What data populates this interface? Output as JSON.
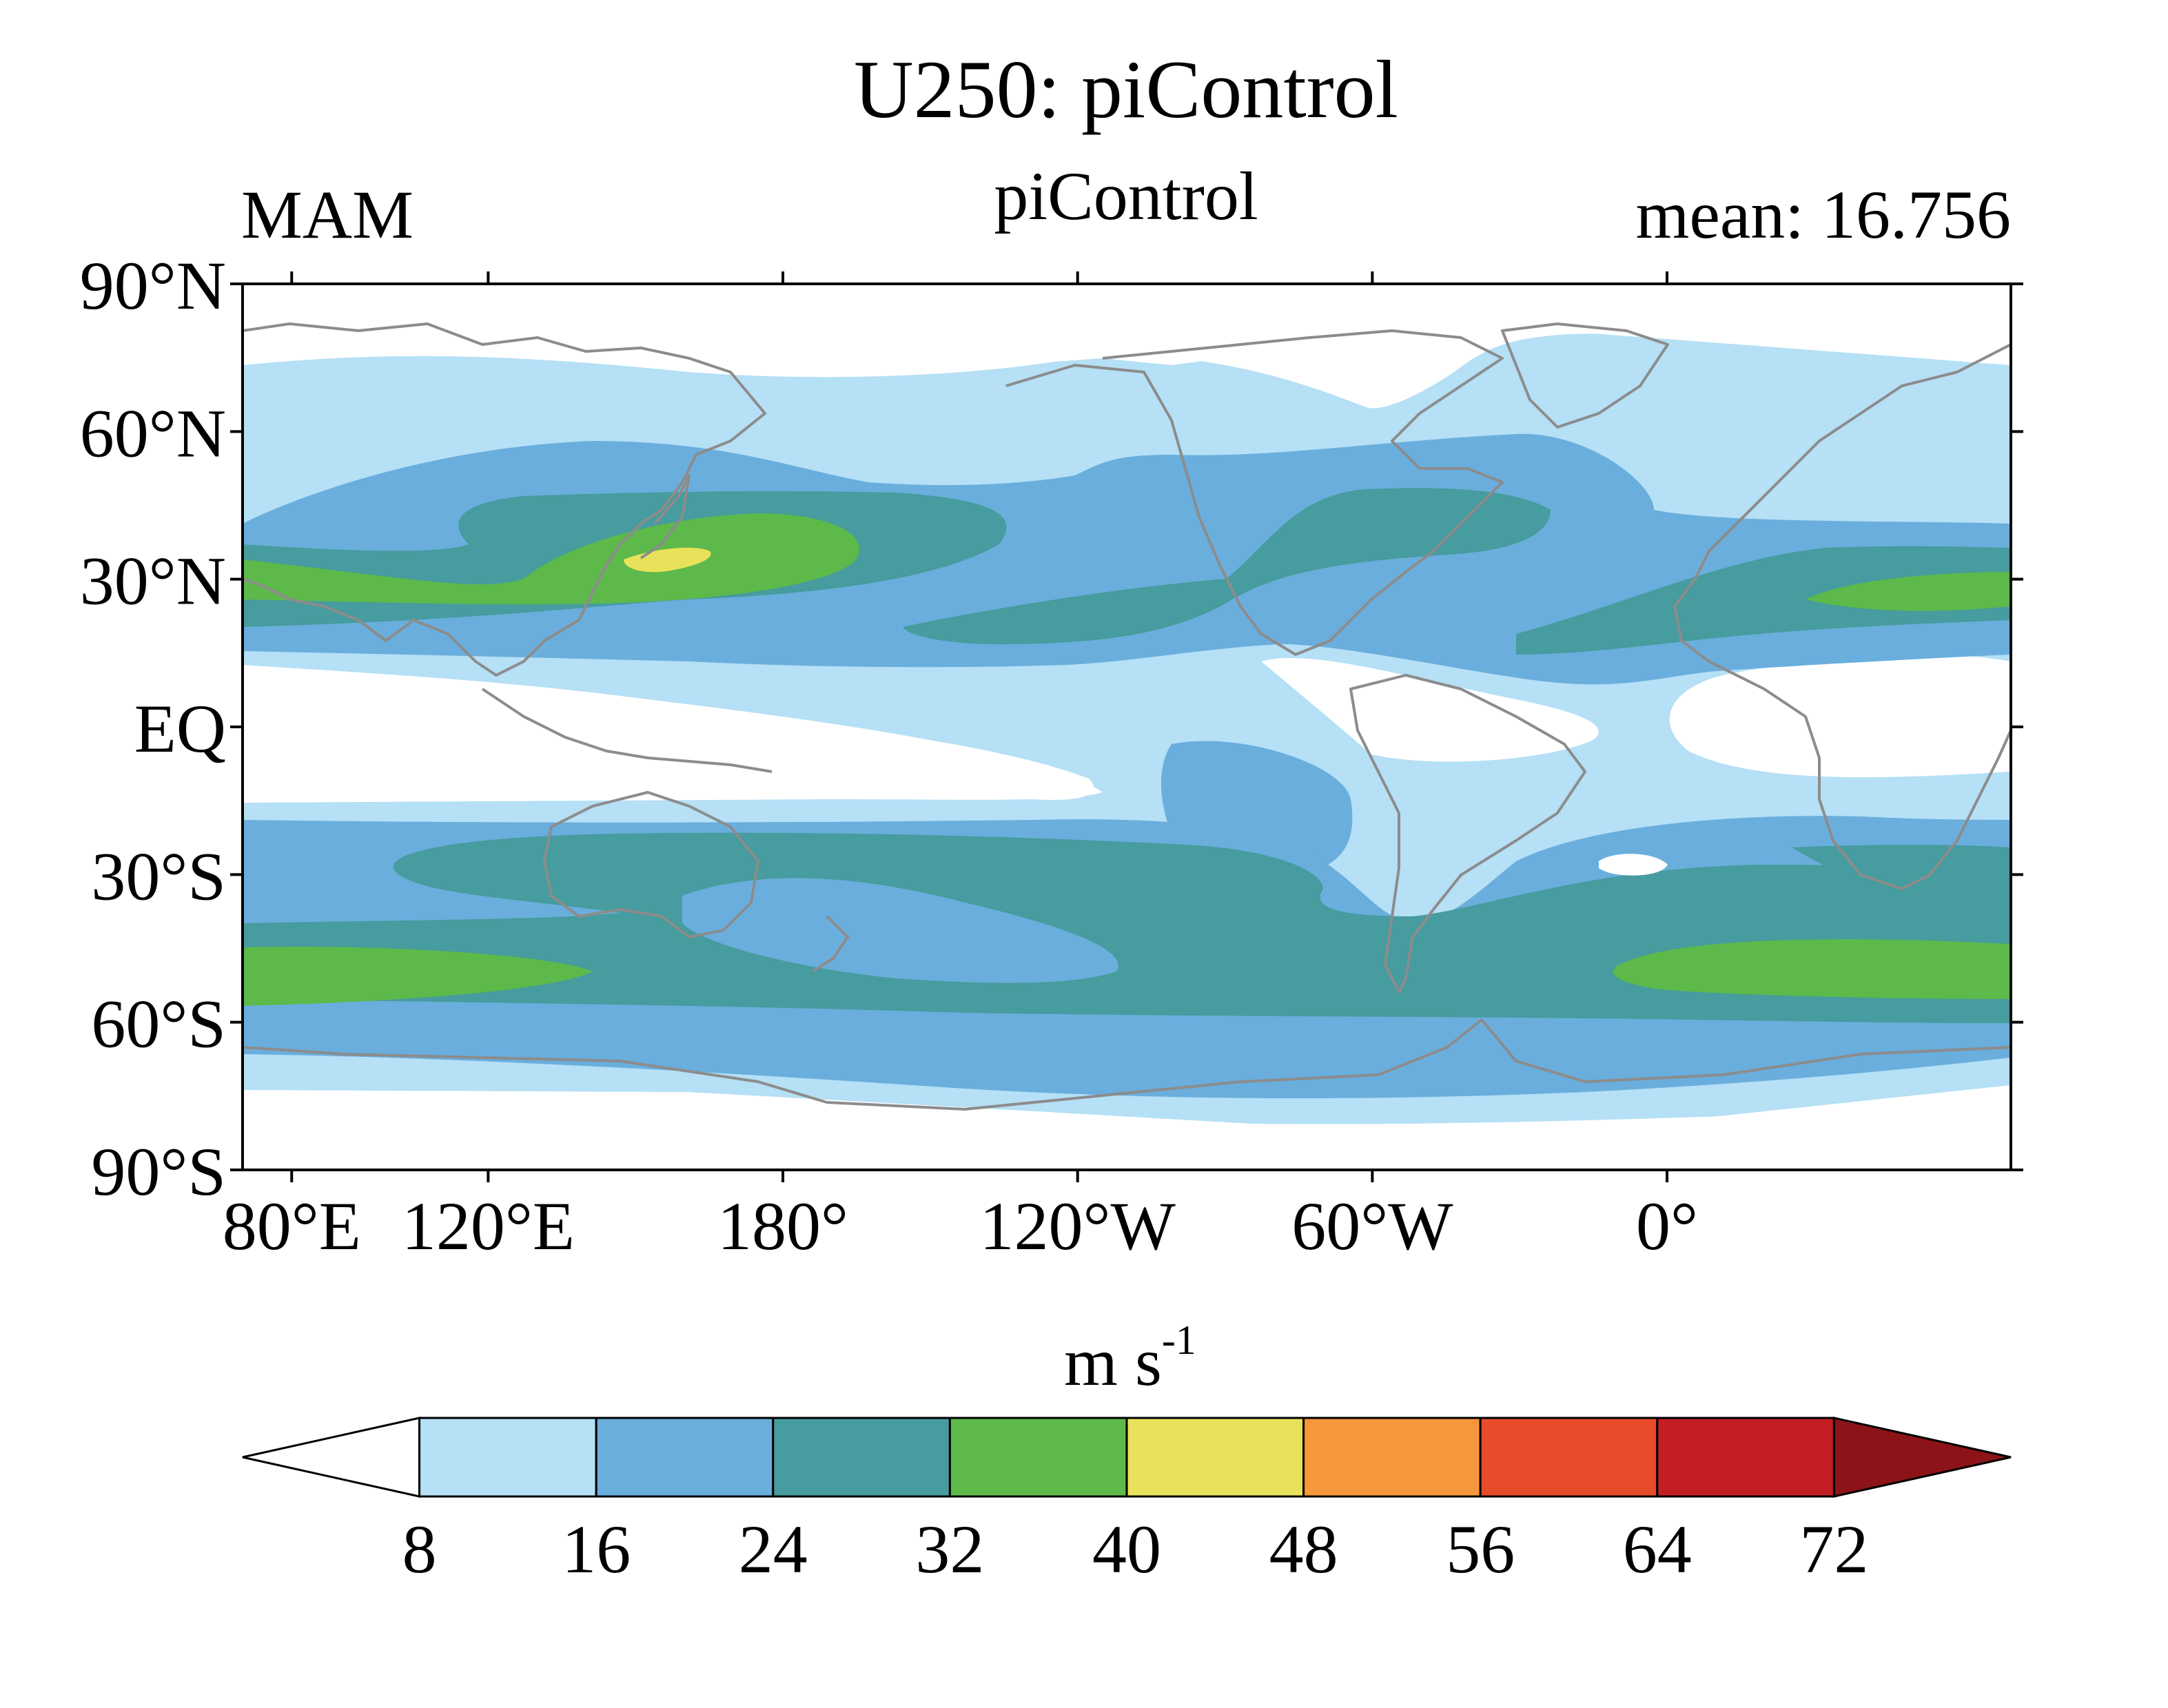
{
  "title": "U250: piControl",
  "left_label": "MAM",
  "center_label": "piControl",
  "right_label": "mean: 16.756",
  "y_axis": {
    "ticks": [
      "90°N",
      "60°N",
      "30°N",
      "EQ",
      "30°S",
      "60°S",
      "90°S"
    ],
    "lat_values": [
      90,
      60,
      30,
      0,
      -30,
      -60,
      -90
    ]
  },
  "x_axis": {
    "ticks": [
      "80°E",
      "120°E",
      "180°",
      "120°W",
      "60°W",
      "0°"
    ],
    "lon_values": [
      80,
      120,
      180,
      240,
      300,
      360
    ],
    "range": [
      70,
      430
    ]
  },
  "colorbar": {
    "units_base": "m s",
    "units_exp": "-1",
    "levels": [
      "8",
      "16",
      "24",
      "32",
      "40",
      "48",
      "56",
      "64",
      "72"
    ],
    "colors": [
      "#ffffff",
      "#b5e0f6",
      "#6aaedd",
      "#469c9e",
      "#5db94a",
      "#e8e25a",
      "#f5973a",
      "#e64c2a",
      "#c41e25",
      "#8c1418"
    ],
    "extend": "both"
  },
  "map_colors": {
    "coast": "#8c8c8c",
    "frame": "#000000"
  }
}
